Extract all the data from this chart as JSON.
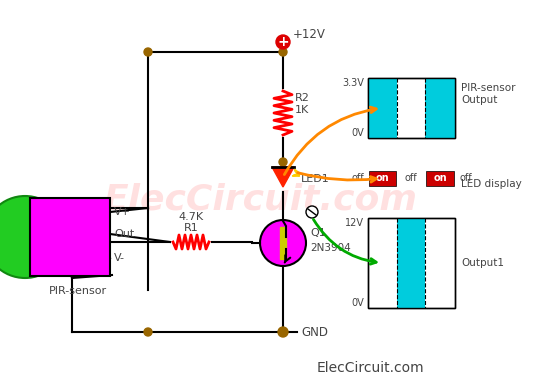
{
  "bg_color": "#ffffff",
  "watermark_text": "ElecCircuit.com",
  "watermark_color": "#ffcccc",
  "footer_text": "ElecCircuit.com",
  "colors": {
    "wire": "#000000",
    "resistor_r": "#ff0000",
    "transistor_body": "#ff00ff",
    "pir_body": "#ff00ff",
    "pir_lens": "#00cc00",
    "node_dot": "#996600",
    "cyan_fill": "#00ccdd",
    "red_fill": "#cc0000",
    "arrow_orange": "#ff8800",
    "arrow_green": "#00aa00",
    "vcc_symbol": "#ff0000",
    "text_dark": "#444444"
  },
  "vcc_label": "+12V",
  "gnd_label": "GND",
  "r1_label1": "R1",
  "r1_label2": "4.7K",
  "r2_label1": "R2",
  "r2_label2": "1K",
  "led_label": "LED1",
  "q_label1": "Q1",
  "q_label2": "2N3904",
  "pir_label": "PIR-sensor",
  "pin_vp": "V+",
  "pin_out": "Out",
  "pin_vm": "V-",
  "pir_sig_high": "3.3V",
  "pir_sig_low": "0V",
  "out_sig_high": "12V",
  "out_sig_low": "0V",
  "pir_output_label1": "PIR-sensor",
  "pir_output_label2": "Output",
  "led_display_label": "LED display",
  "output1_label": "Output1",
  "on_text": "on",
  "off_text": "off"
}
